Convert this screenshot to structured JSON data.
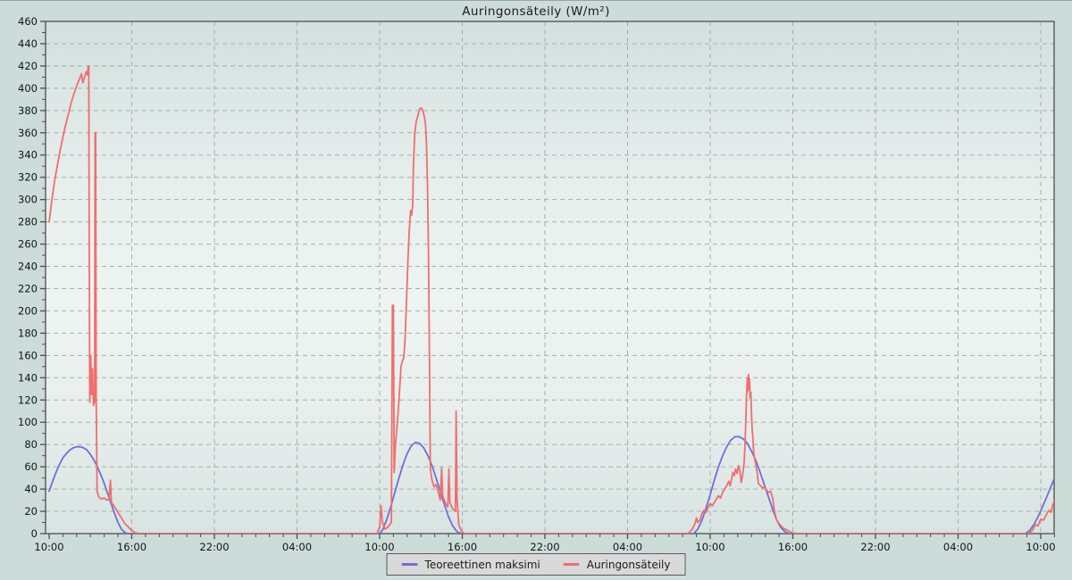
{
  "title": "Auringonsäteily (W/m²)",
  "legend": {
    "items": [
      {
        "label": "Teoreettinen maksimi",
        "color": "#6f6fd8"
      },
      {
        "label": "Auringonsäteily",
        "color": "#f06e6e"
      }
    ]
  },
  "colors": {
    "page_background": "#ccdcd8",
    "plot_gradient_top": "#d3e0dd",
    "plot_gradient_middle": "#eef4f2",
    "plot_gradient_bottom": "#d8e4e1",
    "grid": "#a9adab",
    "frame": "#4d4d4d",
    "text": "#141414",
    "legend_background": "#d9d9d9",
    "legend_border": "#5a5a5a"
  },
  "chart_data": {
    "type": "line",
    "title": "Auringonsäteily (W/m²)",
    "xlabel": "",
    "ylabel": "W/m²",
    "x_unit_hours_from_first_tick": true,
    "xlim": [
      0,
      73
    ],
    "ylim": [
      0,
      460
    ],
    "y_tick_step": 20,
    "y_minor_step": 10,
    "x_major_step_hours": 6,
    "x_minor_step_hours": 1,
    "grid": "dashed",
    "legend_position": "bottom-center",
    "y_tick_labels": [
      "0",
      "20",
      "40",
      "60",
      "80",
      "100",
      "120",
      "140",
      "160",
      "180",
      "200",
      "220",
      "240",
      "260",
      "280",
      "300",
      "320",
      "340",
      "360",
      "380",
      "400",
      "420",
      "440",
      "460"
    ],
    "x_tick_labels": [
      "10:00",
      "16:00",
      "22:00",
      "04:00",
      "10:00",
      "16:00",
      "22:00",
      "04:00",
      "10:00",
      "16:00",
      "22:00",
      "04:00",
      "10:00"
    ],
    "series": [
      {
        "name": "Teoreettinen maksimi",
        "color": "#6f6fd8",
        "points": [
          [
            0,
            38
          ],
          [
            0.25,
            47
          ],
          [
            0.5,
            55
          ],
          [
            0.75,
            62
          ],
          [
            1,
            68
          ],
          [
            1.25,
            72
          ],
          [
            1.5,
            75
          ],
          [
            1.75,
            77
          ],
          [
            2,
            78
          ],
          [
            2.25,
            78
          ],
          [
            2.5,
            77
          ],
          [
            2.75,
            75
          ],
          [
            3,
            71
          ],
          [
            3.25,
            66
          ],
          [
            3.5,
            60
          ],
          [
            3.75,
            53
          ],
          [
            4,
            45
          ],
          [
            4.25,
            36
          ],
          [
            4.5,
            27
          ],
          [
            4.75,
            18
          ],
          [
            5,
            10
          ],
          [
            5.25,
            4
          ],
          [
            5.5,
            1
          ],
          [
            5.7,
            0
          ],
          [
            24,
            0
          ],
          [
            24.2,
            3
          ],
          [
            24.5,
            12
          ],
          [
            24.8,
            24
          ],
          [
            25.1,
            37
          ],
          [
            25.4,
            50
          ],
          [
            25.7,
            62
          ],
          [
            26,
            72
          ],
          [
            26.3,
            79
          ],
          [
            26.6,
            82
          ],
          [
            26.9,
            81
          ],
          [
            27.2,
            77
          ],
          [
            27.5,
            70
          ],
          [
            27.8,
            61
          ],
          [
            28.1,
            50
          ],
          [
            28.4,
            38
          ],
          [
            28.7,
            26
          ],
          [
            29,
            15
          ],
          [
            29.3,
            7
          ],
          [
            29.6,
            2
          ],
          [
            29.9,
            0
          ],
          [
            46.8,
            0
          ],
          [
            47.1,
            4
          ],
          [
            47.4,
            12
          ],
          [
            47.7,
            23
          ],
          [
            48,
            35
          ],
          [
            48.3,
            48
          ],
          [
            48.6,
            60
          ],
          [
            48.9,
            70
          ],
          [
            49.2,
            78
          ],
          [
            49.5,
            84
          ],
          [
            49.8,
            87
          ],
          [
            50.1,
            87
          ],
          [
            50.4,
            85
          ],
          [
            50.7,
            81
          ],
          [
            51,
            74
          ],
          [
            51.3,
            66
          ],
          [
            51.6,
            56
          ],
          [
            51.9,
            45
          ],
          [
            52.2,
            34
          ],
          [
            52.5,
            23
          ],
          [
            52.8,
            13
          ],
          [
            53.1,
            6
          ],
          [
            53.4,
            2
          ],
          [
            53.7,
            0
          ],
          [
            70.9,
            0
          ],
          [
            71.2,
            3
          ],
          [
            71.5,
            8
          ],
          [
            71.8,
            15
          ],
          [
            72.1,
            23
          ],
          [
            72.4,
            32
          ],
          [
            72.7,
            41
          ],
          [
            73,
            50
          ]
        ]
      },
      {
        "name": "Auringonsäteily",
        "color": "#f06e6e",
        "points": [
          [
            0,
            280
          ],
          [
            0.2,
            300
          ],
          [
            0.4,
            317
          ],
          [
            0.6,
            331
          ],
          [
            0.8,
            344
          ],
          [
            1,
            356
          ],
          [
            1.2,
            367
          ],
          [
            1.4,
            377
          ],
          [
            1.6,
            387
          ],
          [
            1.8,
            395
          ],
          [
            2,
            402
          ],
          [
            2.2,
            408
          ],
          [
            2.35,
            413
          ],
          [
            2.45,
            405
          ],
          [
            2.6,
            411
          ],
          [
            2.7,
            415
          ],
          [
            2.78,
            412
          ],
          [
            2.84,
            420
          ],
          [
            2.88,
            420
          ],
          [
            2.9,
            310
          ],
          [
            2.95,
            118
          ],
          [
            3.02,
            160
          ],
          [
            3.08,
            125
          ],
          [
            3.15,
            148
          ],
          [
            3.22,
            115
          ],
          [
            3.3,
            118
          ],
          [
            3.34,
            360
          ],
          [
            3.38,
            360
          ],
          [
            3.42,
            120
          ],
          [
            3.48,
            38
          ],
          [
            3.6,
            33
          ],
          [
            3.8,
            31
          ],
          [
            4,
            32
          ],
          [
            4.2,
            30
          ],
          [
            4.35,
            31
          ],
          [
            4.45,
            48
          ],
          [
            4.52,
            28
          ],
          [
            4.7,
            25
          ],
          [
            4.9,
            21
          ],
          [
            5.2,
            15
          ],
          [
            5.5,
            9
          ],
          [
            5.9,
            4
          ],
          [
            6.2,
            1
          ],
          [
            6.5,
            0
          ],
          [
            23.8,
            0
          ],
          [
            24,
            6
          ],
          [
            24.1,
            25
          ],
          [
            24.2,
            10
          ],
          [
            24.4,
            4
          ],
          [
            24.6,
            6
          ],
          [
            24.85,
            10
          ],
          [
            24.93,
            205
          ],
          [
            25,
            205
          ],
          [
            25.05,
            55
          ],
          [
            25.15,
            80
          ],
          [
            25.25,
            95
          ],
          [
            25.35,
            110
          ],
          [
            25.45,
            130
          ],
          [
            25.55,
            150
          ],
          [
            25.65,
            155
          ],
          [
            25.75,
            158
          ],
          [
            25.85,
            175
          ],
          [
            25.95,
            210
          ],
          [
            26.05,
            245
          ],
          [
            26.15,
            272
          ],
          [
            26.25,
            290
          ],
          [
            26.32,
            286
          ],
          [
            26.4,
            295
          ],
          [
            26.45,
            330
          ],
          [
            26.55,
            360
          ],
          [
            26.65,
            370
          ],
          [
            26.75,
            374
          ],
          [
            26.85,
            379
          ],
          [
            26.95,
            382
          ],
          [
            27.05,
            382
          ],
          [
            27.15,
            379
          ],
          [
            27.25,
            374
          ],
          [
            27.32,
            369
          ],
          [
            27.4,
            350
          ],
          [
            27.48,
            310
          ],
          [
            27.55,
            250
          ],
          [
            27.62,
            150
          ],
          [
            27.68,
            58
          ],
          [
            27.8,
            48
          ],
          [
            27.95,
            42
          ],
          [
            28.1,
            44
          ],
          [
            28.25,
            38
          ],
          [
            28.4,
            30
          ],
          [
            28.5,
            59
          ],
          [
            28.57,
            34
          ],
          [
            28.75,
            28
          ],
          [
            28.95,
            24
          ],
          [
            29.03,
            58
          ],
          [
            29.1,
            28
          ],
          [
            29.3,
            22
          ],
          [
            29.5,
            20
          ],
          [
            29.55,
            110
          ],
          [
            29.62,
            30
          ],
          [
            29.75,
            8
          ],
          [
            29.95,
            2
          ],
          [
            30.15,
            0
          ],
          [
            46.4,
            0
          ],
          [
            46.7,
            4
          ],
          [
            46.9,
            9
          ],
          [
            47,
            14
          ],
          [
            47.1,
            10
          ],
          [
            47.25,
            12
          ],
          [
            47.4,
            18
          ],
          [
            47.55,
            21
          ],
          [
            47.7,
            19
          ],
          [
            47.85,
            24
          ],
          [
            48,
            27
          ],
          [
            48.15,
            25
          ],
          [
            48.3,
            28
          ],
          [
            48.45,
            31
          ],
          [
            48.6,
            34
          ],
          [
            48.75,
            32
          ],
          [
            48.9,
            37
          ],
          [
            49.05,
            40
          ],
          [
            49.2,
            43
          ],
          [
            49.35,
            47
          ],
          [
            49.45,
            43
          ],
          [
            49.55,
            49
          ],
          [
            49.65,
            55
          ],
          [
            49.75,
            52
          ],
          [
            49.85,
            58
          ],
          [
            49.95,
            54
          ],
          [
            50.05,
            61
          ],
          [
            50.15,
            57
          ],
          [
            50.25,
            46
          ],
          [
            50.35,
            52
          ],
          [
            50.45,
            62
          ],
          [
            50.52,
            78
          ],
          [
            50.58,
            100
          ],
          [
            50.64,
            125
          ],
          [
            50.7,
            140
          ],
          [
            50.74,
            128
          ],
          [
            50.78,
            143
          ],
          [
            50.82,
            130
          ],
          [
            50.86,
            139
          ],
          [
            50.9,
            122
          ],
          [
            50.95,
            127
          ],
          [
            51,
            106
          ],
          [
            51.05,
            93
          ],
          [
            51.1,
            86
          ],
          [
            51.15,
            74
          ],
          [
            51.22,
            68
          ],
          [
            51.3,
            63
          ],
          [
            51.4,
            56
          ],
          [
            51.5,
            45
          ],
          [
            51.65,
            43
          ],
          [
            51.8,
            41
          ],
          [
            51.95,
            42
          ],
          [
            52.1,
            39
          ],
          [
            52.25,
            37
          ],
          [
            52.4,
            38
          ],
          [
            52.55,
            31
          ],
          [
            52.65,
            21
          ],
          [
            52.8,
            13
          ],
          [
            53,
            9
          ],
          [
            53.3,
            5
          ],
          [
            53.6,
            3
          ],
          [
            53.9,
            1
          ],
          [
            54.2,
            0
          ],
          [
            71.1,
            0
          ],
          [
            71.4,
            3
          ],
          [
            71.6,
            8
          ],
          [
            71.8,
            7
          ],
          [
            72,
            13
          ],
          [
            72.2,
            12
          ],
          [
            72.4,
            17
          ],
          [
            72.6,
            21
          ],
          [
            72.75,
            19
          ],
          [
            72.85,
            25
          ],
          [
            73,
            30
          ]
        ]
      }
    ]
  }
}
